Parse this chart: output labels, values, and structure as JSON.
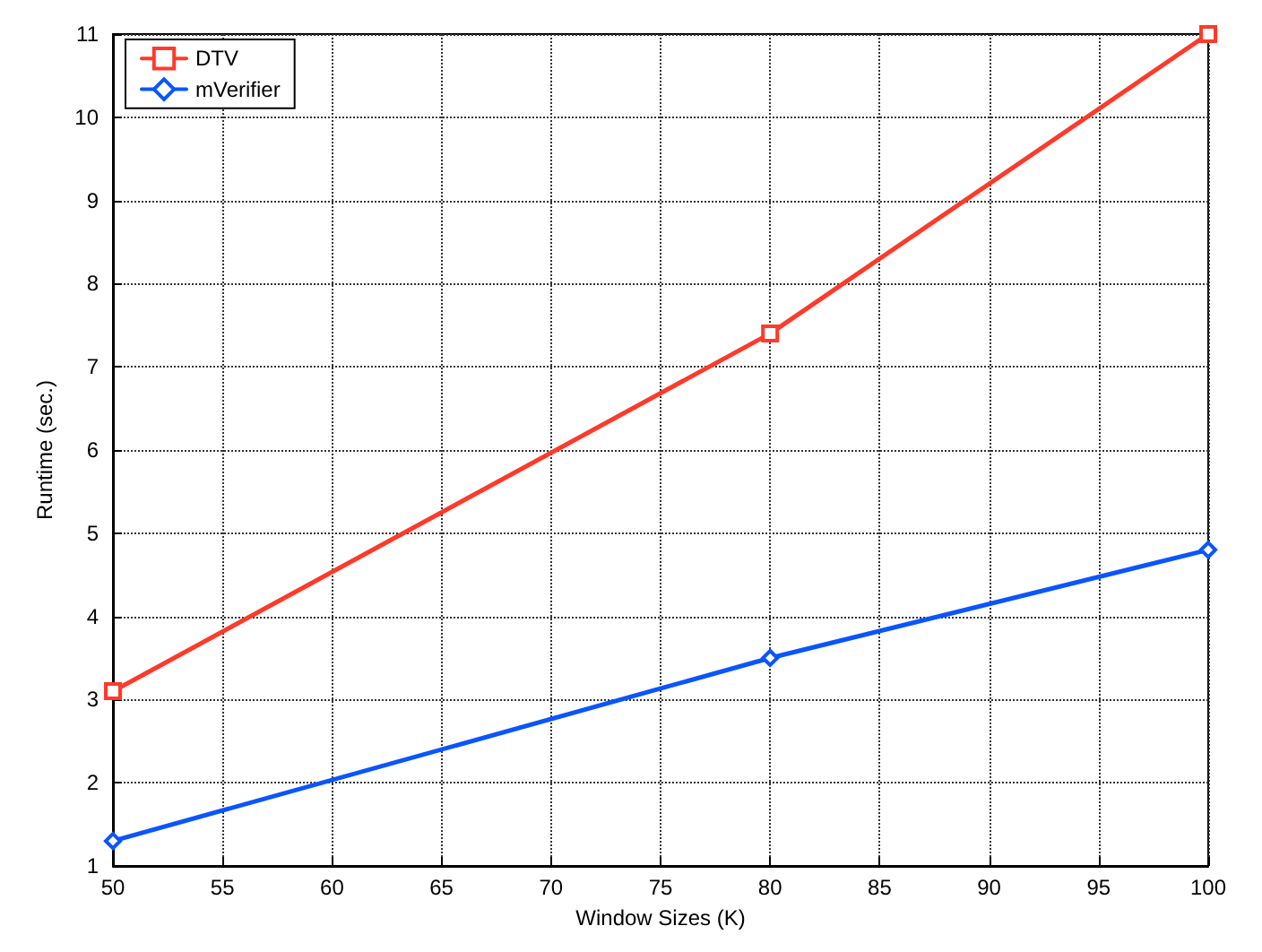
{
  "chart_data": {
    "type": "line",
    "xlabel": "Window Sizes (K)",
    "ylabel": "Runtime (sec.)",
    "x": [
      50,
      80,
      100
    ],
    "series": [
      {
        "name": "DTV",
        "color": "#ff3a2a",
        "values": [
          3.1,
          7.4,
          11
        ],
        "marker": "square"
      },
      {
        "name": "mVerifier",
        "color": "#0a55ff",
        "values": [
          1.3,
          3.5,
          4.8
        ],
        "marker": "diamond"
      }
    ],
    "xlim": [
      50,
      100
    ],
    "xticks": [
      50,
      55,
      60,
      65,
      70,
      75,
      80,
      85,
      90,
      95,
      100
    ],
    "ylim": [
      1,
      11
    ],
    "yticks": [
      1,
      2,
      3,
      4,
      5,
      6,
      7,
      8,
      9,
      10,
      11
    ],
    "grid": true,
    "legend": "top left",
    "line_style": "solid"
  }
}
